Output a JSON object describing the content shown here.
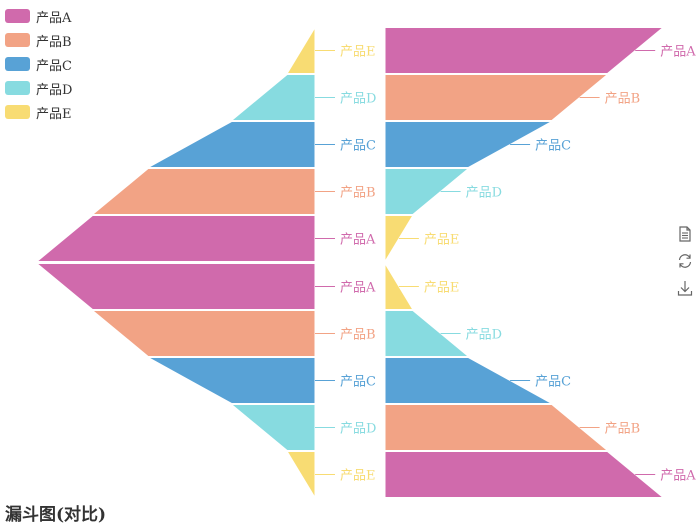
{
  "chart_data": {
    "type": "funnel",
    "title": "漏斗图(对比)",
    "categories": [
      "产品A",
      "产品B",
      "产品C",
      "产品D",
      "产品E"
    ],
    "colors": {
      "产品A": "#d06aac",
      "产品B": "#f2a385",
      "产品C": "#58a2d6",
      "产品D": "#87dbe0",
      "产品E": "#f8dc73"
    },
    "funnels": [
      {
        "position": "left-top",
        "orientation": "horizontal-pointing-left",
        "sort": "ascending",
        "items": [
          {
            "name": "产品E",
            "value": 10
          },
          {
            "name": "产品D",
            "value": 30
          },
          {
            "name": "产品C",
            "value": 60
          },
          {
            "name": "产品B",
            "value": 80
          },
          {
            "name": "产品A",
            "value": 100
          }
        ]
      },
      {
        "position": "left-bottom",
        "orientation": "horizontal-pointing-left",
        "sort": "descending",
        "items": [
          {
            "name": "产品A",
            "value": 100
          },
          {
            "name": "产品B",
            "value": 80
          },
          {
            "name": "产品C",
            "value": 60
          },
          {
            "name": "产品D",
            "value": 30
          },
          {
            "name": "产品E",
            "value": 10
          }
        ]
      },
      {
        "position": "right-top",
        "orientation": "horizontal-pointing-right",
        "sort": "descending",
        "items": [
          {
            "name": "产品A",
            "value": 100
          },
          {
            "name": "产品B",
            "value": 80
          },
          {
            "name": "产品C",
            "value": 60
          },
          {
            "name": "产品D",
            "value": 30
          },
          {
            "name": "产品E",
            "value": 10
          }
        ]
      },
      {
        "position": "right-bottom",
        "orientation": "horizontal-pointing-right",
        "sort": "ascending",
        "items": [
          {
            "name": "产品E",
            "value": 10
          },
          {
            "name": "产品D",
            "value": 30
          },
          {
            "name": "产品C",
            "value": 60
          },
          {
            "name": "产品B",
            "value": 80
          },
          {
            "name": "产品A",
            "value": 100
          }
        ]
      }
    ],
    "legend": [
      "产品A",
      "产品B",
      "产品C",
      "产品D",
      "产品E"
    ],
    "legend_placement": "top-left"
  },
  "toolbox": {
    "icons": [
      "data-view-icon",
      "restore-icon",
      "save-image-icon"
    ]
  }
}
